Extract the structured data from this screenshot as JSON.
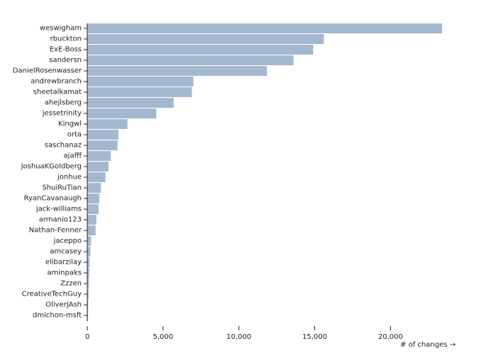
{
  "chart_data": {
    "type": "bar",
    "orientation": "horizontal",
    "categories": [
      "weswigham",
      "rbuckton",
      "ExE-Boss",
      "sandersn",
      "DanielRosenwasser",
      "andrewbranch",
      "sheetalkamat",
      "ahejlsberg",
      "jessetrinity",
      "Kingwl",
      "orta",
      "saschanaz",
      "ajafff",
      "JoshuaKGoldberg",
      "jonhue",
      "ShuiRuTian",
      "RyanCavanaugh",
      "jack-williams",
      "armanio123",
      "Nathan-Fenner",
      "jaceppo",
      "amcasey",
      "elibarzilay",
      "aminpaks",
      "Zzzen",
      "CreativeTechGuy",
      "OliverJAsh",
      "dmichon-msft"
    ],
    "values": [
      23400,
      15600,
      14900,
      13600,
      11850,
      7000,
      6900,
      5700,
      4550,
      2650,
      2050,
      2000,
      1550,
      1400,
      1200,
      900,
      800,
      750,
      600,
      550,
      250,
      200,
      150,
      130,
      110,
      90,
      60,
      40
    ],
    "xlabel": "# of changes →",
    "ylabel": "",
    "title": "",
    "xlim": [
      0,
      23400
    ],
    "xticks": [
      0,
      5000,
      10000,
      15000,
      20000
    ],
    "xtick_labels": [
      "0",
      "5,000",
      "10,000",
      "15,000",
      "20,000"
    ],
    "grid": false,
    "bar_color": "#a3b8cf"
  }
}
